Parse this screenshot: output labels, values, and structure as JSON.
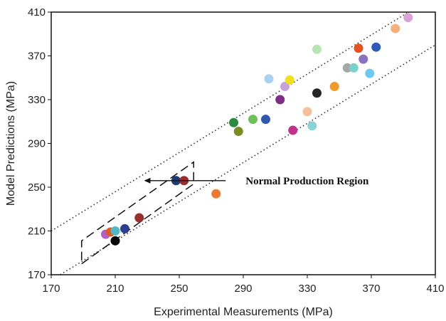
{
  "chart_data": {
    "type": "scatter",
    "xlabel": "Experimental Measurements (MPa)",
    "ylabel": "Model Predictions (MPa)",
    "xlim": [
      170,
      410
    ],
    "ylim": [
      170,
      410
    ],
    "x_ticks": [
      "170",
      "210",
      "250",
      "290",
      "330",
      "370",
      "410"
    ],
    "y_ticks": [
      "170",
      "210",
      "250",
      "290",
      "330",
      "370",
      "410"
    ],
    "grid": false,
    "legend": "none",
    "annotation": "Normal Production Region",
    "bounds": {
      "upper": [
        [
          170,
          210
        ],
        [
          410,
          425
        ]
      ],
      "lower": [
        [
          170,
          165
        ],
        [
          410,
          380
        ]
      ]
    },
    "region": [
      [
        189,
        180
      ],
      [
        259,
        253
      ],
      [
        259,
        273
      ],
      [
        189,
        201
      ]
    ],
    "arrow": {
      "from": [
        279,
        256
      ],
      "to": [
        228,
        256
      ]
    },
    "points": [
      {
        "x": 210,
        "y": 201,
        "color": "#050505"
      },
      {
        "x": 204,
        "y": 207,
        "color": "#b55cc7"
      },
      {
        "x": 207,
        "y": 209,
        "color": "#e05a20"
      },
      {
        "x": 210,
        "y": 210,
        "color": "#4fb8c7"
      },
      {
        "x": 216,
        "y": 212,
        "color": "#2d3f8f"
      },
      {
        "x": 225,
        "y": 222,
        "color": "#9b2e2a"
      },
      {
        "x": 248,
        "y": 256,
        "color": "#1c3a74"
      },
      {
        "x": 253,
        "y": 256,
        "color": "#9b2e2a"
      },
      {
        "x": 273,
        "y": 244,
        "color": "#ee7a30"
      },
      {
        "x": 284,
        "y": 309,
        "color": "#2a8a3e"
      },
      {
        "x": 287,
        "y": 301,
        "color": "#7b8c22"
      },
      {
        "x": 296,
        "y": 312,
        "color": "#6cc15a"
      },
      {
        "x": 304,
        "y": 312,
        "color": "#2f58b0"
      },
      {
        "x": 306,
        "y": 349,
        "color": "#a8d2ef"
      },
      {
        "x": 313,
        "y": 330,
        "color": "#7f2d86"
      },
      {
        "x": 316,
        "y": 342,
        "color": "#c9a2db"
      },
      {
        "x": 319,
        "y": 348,
        "color": "#f2e01c"
      },
      {
        "x": 321,
        "y": 302,
        "color": "#c5318a"
      },
      {
        "x": 330,
        "y": 319,
        "color": "#f6c09a"
      },
      {
        "x": 333,
        "y": 306,
        "color": "#8ad4d8"
      },
      {
        "x": 336,
        "y": 376,
        "color": "#b7e4b2"
      },
      {
        "x": 336,
        "y": 336,
        "color": "#262626"
      },
      {
        "x": 347,
        "y": 342,
        "color": "#ef9a2a"
      },
      {
        "x": 355,
        "y": 359,
        "color": "#a7a7a7"
      },
      {
        "x": 359,
        "y": 359,
        "color": "#7ad1cc"
      },
      {
        "x": 362,
        "y": 377,
        "color": "#e6521e"
      },
      {
        "x": 365,
        "y": 367,
        "color": "#8a72c2"
      },
      {
        "x": 369,
        "y": 354,
        "color": "#6fc8ef"
      },
      {
        "x": 373,
        "y": 378,
        "color": "#2b5db8"
      },
      {
        "x": 385,
        "y": 395,
        "color": "#f6b07a"
      },
      {
        "x": 393,
        "y": 405,
        "color": "#d9a3d6"
      }
    ]
  }
}
